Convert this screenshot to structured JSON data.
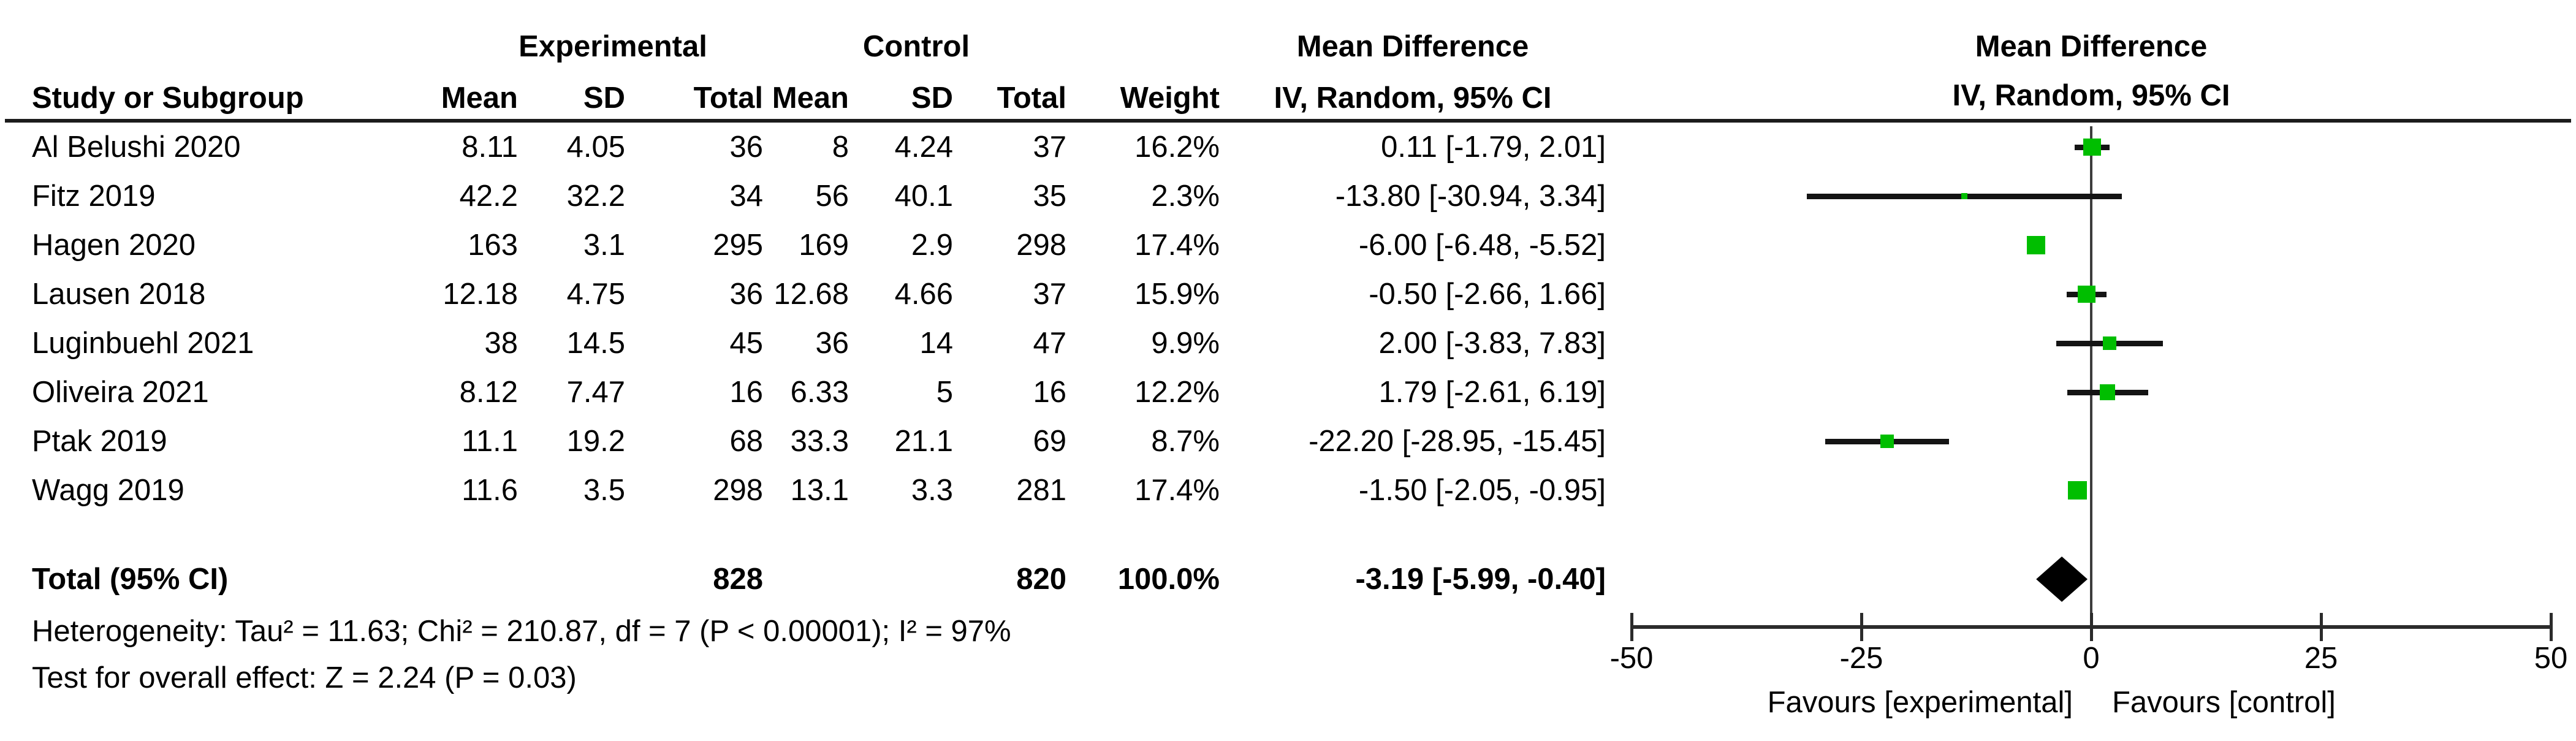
{
  "table": {
    "group_headers": {
      "experimental": "Experimental",
      "control": "Control",
      "md_left": "Mean Difference",
      "md_right": "Mean Difference"
    },
    "sub_headers": {
      "study": "Study or Subgroup",
      "mean": "Mean",
      "sd": "SD",
      "total": "Total",
      "mean2": "Mean",
      "sd2": "SD",
      "total2": "Total",
      "weight": "Weight",
      "ci": "IV, Random, 95% CI",
      "ci_right": "IV, Random, 95% CI"
    },
    "studies": [
      {
        "study": "Al Belushi 2020",
        "mean_e": "8.11",
        "sd_e": "4.05",
        "total_e": "36",
        "mean_c": "8",
        "sd_c": "4.24",
        "total_c": "37",
        "weight": "16.2%",
        "ci": "0.11 [-1.79, 2.01]"
      },
      {
        "study": "Fitz 2019",
        "mean_e": "42.2",
        "sd_e": "32.2",
        "total_e": "34",
        "mean_c": "56",
        "sd_c": "40.1",
        "total_c": "35",
        "weight": "2.3%",
        "ci": "-13.80 [-30.94, 3.34]"
      },
      {
        "study": "Hagen 2020",
        "mean_e": "163",
        "sd_e": "3.1",
        "total_e": "295",
        "mean_c": "169",
        "sd_c": "2.9",
        "total_c": "298",
        "weight": "17.4%",
        "ci": "-6.00 [-6.48, -5.52]"
      },
      {
        "study": "Lausen 2018",
        "mean_e": "12.18",
        "sd_e": "4.75",
        "total_e": "36",
        "mean_c": "12.68",
        "sd_c": "4.66",
        "total_c": "37",
        "weight": "15.9%",
        "ci": "-0.50 [-2.66, 1.66]"
      },
      {
        "study": "Luginbuehl 2021",
        "mean_e": "38",
        "sd_e": "14.5",
        "total_e": "45",
        "mean_c": "36",
        "sd_c": "14",
        "total_c": "47",
        "weight": "9.9%",
        "ci": "2.00 [-3.83, 7.83]"
      },
      {
        "study": "Oliveira 2021",
        "mean_e": "8.12",
        "sd_e": "7.47",
        "total_e": "16",
        "mean_c": "6.33",
        "sd_c": "5",
        "total_c": "16",
        "weight": "12.2%",
        "ci": "1.79 [-2.61, 6.19]"
      },
      {
        "study": "Ptak 2019",
        "mean_e": "11.1",
        "sd_e": "19.2",
        "total_e": "68",
        "mean_c": "33.3",
        "sd_c": "21.1",
        "total_c": "69",
        "weight": "8.7%",
        "ci": "-22.20 [-28.95, -15.45]"
      },
      {
        "study": "Wagg 2019",
        "mean_e": "11.6",
        "sd_e": "3.5",
        "total_e": "298",
        "mean_c": "13.1",
        "sd_c": "3.3",
        "total_c": "281",
        "weight": "17.4%",
        "ci": "-1.50 [-2.05, -0.95]"
      }
    ],
    "total_row": {
      "label": "Total (95% CI)",
      "total_e": "828",
      "total_c": "820",
      "weight": "100.0%",
      "ci": "-3.19 [-5.99, -0.40]"
    }
  },
  "footnotes": {
    "heterogeneity": "Heterogeneity: Tau² = 11.63; Chi² = 210.87, df = 7 (P < 0.00001); I² = 97%",
    "overall_effect": "Test for overall effect: Z = 2.24 (P = 0.03)"
  },
  "chart_data": {
    "type": "scatter",
    "variant": "forest-plot",
    "title": "",
    "xlabel_left": "Favours [experimental]",
    "xlabel_right": "Favours [control]",
    "effect_measure": "Mean Difference, IV, Random, 95% CI",
    "axis": {
      "min": -50,
      "max": 50,
      "ticks": [
        -50,
        -25,
        0,
        25,
        50
      ]
    },
    "marker_color": "#00be00",
    "summary_color": "#000000",
    "points": [
      {
        "label": "Al Belushi 2020",
        "md": 0.11,
        "ci": [
          -1.79,
          2.01
        ],
        "weight": 16.2
      },
      {
        "label": "Fitz 2019",
        "md": -13.8,
        "ci": [
          -30.94,
          3.34
        ],
        "weight": 2.3
      },
      {
        "label": "Hagen 2020",
        "md": -6.0,
        "ci": [
          -6.48,
          -5.52
        ],
        "weight": 17.4
      },
      {
        "label": "Lausen 2018",
        "md": -0.5,
        "ci": [
          -2.66,
          1.66
        ],
        "weight": 15.9
      },
      {
        "label": "Luginbuehl 2021",
        "md": 2.0,
        "ci": [
          -3.83,
          7.83
        ],
        "weight": 9.9
      },
      {
        "label": "Oliveira 2021",
        "md": 1.79,
        "ci": [
          -2.61,
          6.19
        ],
        "weight": 12.2
      },
      {
        "label": "Ptak 2019",
        "md": -22.2,
        "ci": [
          -28.95,
          -15.45
        ],
        "weight": 8.7
      },
      {
        "label": "Wagg 2019",
        "md": -1.5,
        "ci": [
          -2.05,
          -0.95
        ],
        "weight": 17.4
      }
    ],
    "summary": {
      "label": "Total (95% CI)",
      "md": -3.19,
      "ci": [
        -5.99,
        -0.4
      ],
      "total_e": 828,
      "total_c": 820,
      "weight": 100.0
    }
  }
}
